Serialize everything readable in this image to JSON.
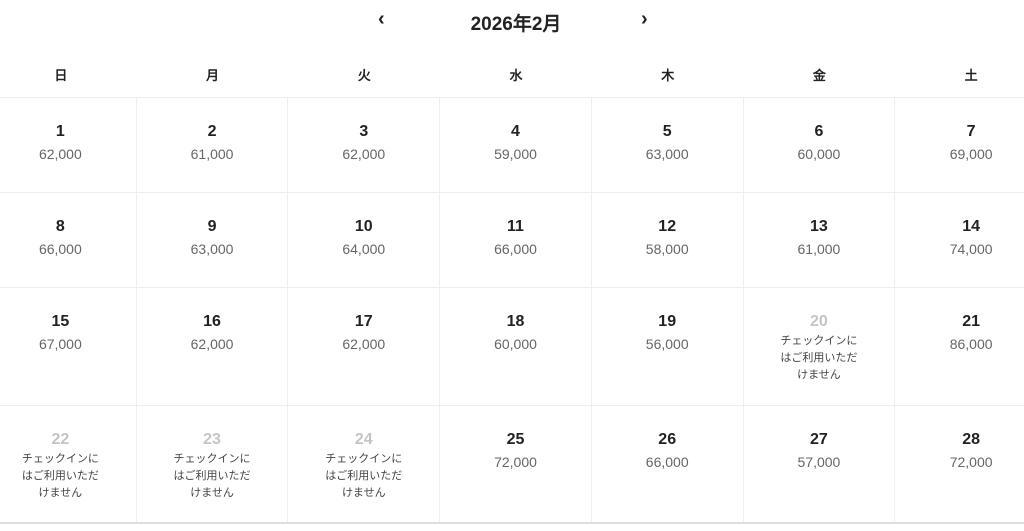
{
  "header": {
    "title": "2026年2月",
    "prev_icon": "chevron-left-icon",
    "next_icon": "chevron-right-icon",
    "prev": "‹",
    "next": "›"
  },
  "weekdays": [
    "日",
    "月",
    "火",
    "水",
    "木",
    "金",
    "土"
  ],
  "weeks": [
    [
      {
        "day": "1",
        "price": "62,000"
      },
      {
        "day": "2",
        "price": "61,000"
      },
      {
        "day": "3",
        "price": "62,000"
      },
      {
        "day": "4",
        "price": "59,000"
      },
      {
        "day": "5",
        "price": "63,000"
      },
      {
        "day": "6",
        "price": "60,000"
      },
      {
        "day": "7",
        "price": "69,000"
      }
    ],
    [
      {
        "day": "8",
        "price": "66,000"
      },
      {
        "day": "9",
        "price": "63,000"
      },
      {
        "day": "10",
        "price": "64,000"
      },
      {
        "day": "11",
        "price": "66,000"
      },
      {
        "day": "12",
        "price": "58,000"
      },
      {
        "day": "13",
        "price": "61,000"
      },
      {
        "day": "14",
        "price": "74,000"
      }
    ],
    [
      {
        "day": "15",
        "price": "67,000"
      },
      {
        "day": "16",
        "price": "62,000"
      },
      {
        "day": "17",
        "price": "62,000"
      },
      {
        "day": "18",
        "price": "60,000"
      },
      {
        "day": "19",
        "price": "56,000"
      },
      {
        "day": "20",
        "unavailable": "チェックインにはご利用いただけません"
      },
      {
        "day": "21",
        "price": "86,000"
      }
    ],
    [
      {
        "day": "22",
        "unavailable": "チェックインにはご利用いただけません"
      },
      {
        "day": "23",
        "unavailable": "チェックインにはご利用いただけません"
      },
      {
        "day": "24",
        "unavailable": "チェックインにはご利用いただけません"
      },
      {
        "day": "25",
        "price": "72,000"
      },
      {
        "day": "26",
        "price": "66,000"
      },
      {
        "day": "27",
        "price": "57,000"
      },
      {
        "day": "28",
        "price": "72,000"
      }
    ]
  ]
}
